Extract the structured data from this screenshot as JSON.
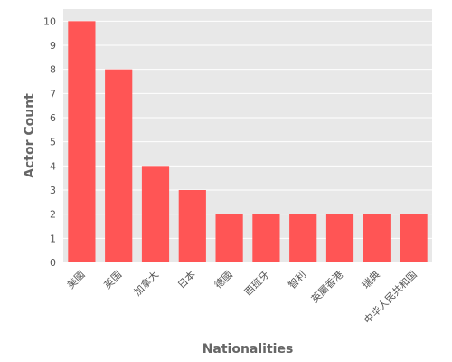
{
  "chart_data": {
    "type": "bar",
    "title": "",
    "xlabel": "Nationalities",
    "ylabel": "Actor Count",
    "categories": [
      "美國",
      "英国",
      "加拿大",
      "日本",
      "德國",
      "西班牙",
      "智利",
      "英屬香港",
      "瑞典",
      "中华人民共和国"
    ],
    "values": [
      10,
      8,
      4,
      3,
      2,
      2,
      2,
      2,
      2,
      2
    ],
    "ylim": [
      0,
      10.5
    ],
    "yticks": [
      0,
      1,
      2,
      3,
      4,
      5,
      6,
      7,
      8,
      9,
      10
    ],
    "grid": true,
    "legend": "none",
    "colors": {
      "bar": "#ff5555",
      "plot_background": "#e8e8e8",
      "grid": "#ffffff"
    }
  }
}
